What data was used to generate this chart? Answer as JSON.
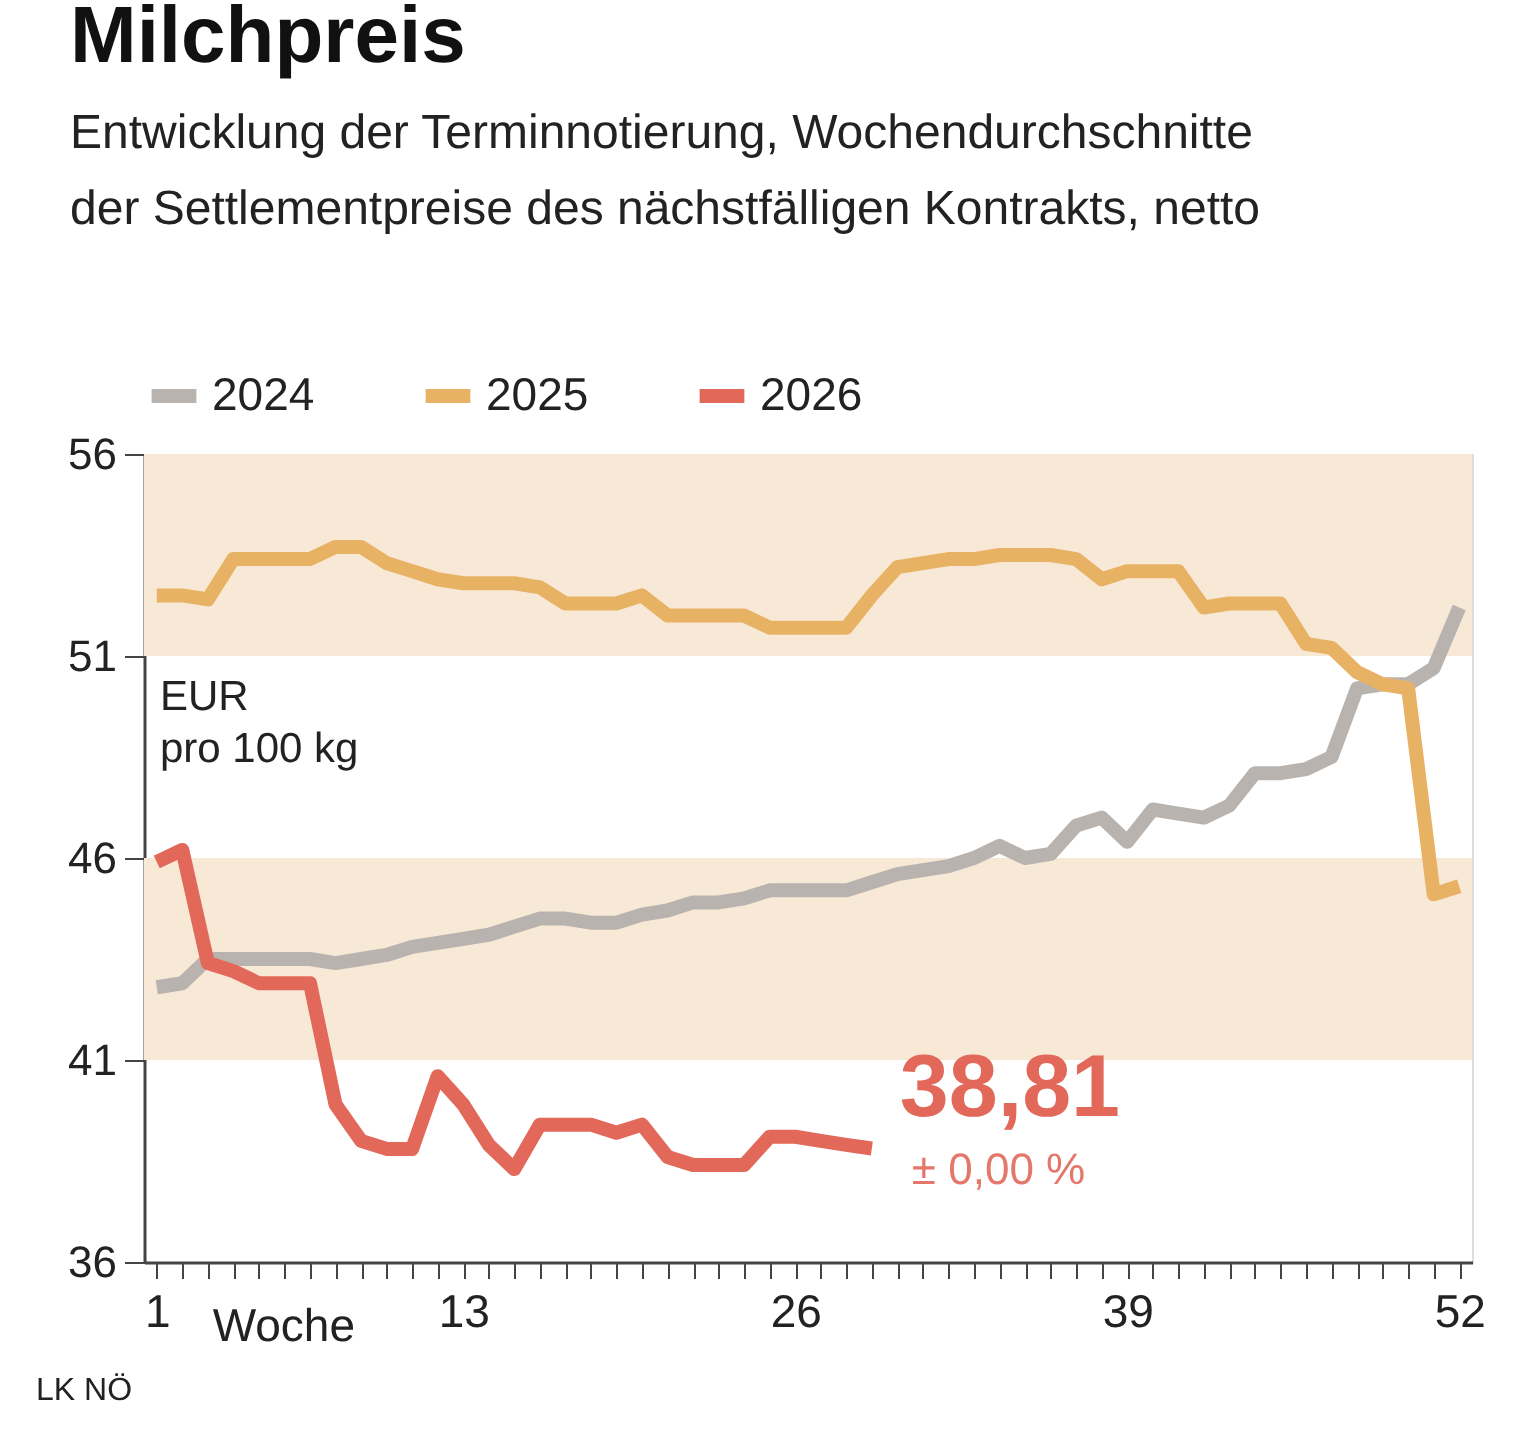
{
  "chart_data": {
    "type": "line",
    "title": "Milchpreis",
    "subtitle": [
      "Entwicklung der Terminnotierung, Wochendurchschnitte",
      "der Settlementpreise des nächstfälligen Kontrakts, netto"
    ],
    "xlabel": "Woche",
    "ylabel": "EUR pro 100 kg",
    "series": [
      {
        "name": "2024",
        "color": "#b8b3ae",
        "x": [
          1,
          2,
          3,
          4,
          5,
          6,
          7,
          8,
          9,
          10,
          11,
          12,
          13,
          14,
          15,
          16,
          17,
          18,
          19,
          20,
          21,
          22,
          23,
          24,
          25,
          26,
          27,
          28,
          29,
          30,
          31,
          32,
          33,
          34,
          35,
          36,
          37,
          38,
          39,
          40,
          41,
          42,
          43,
          44,
          45,
          46,
          47,
          48,
          49,
          50,
          51,
          52
        ],
        "values": [
          42.8,
          42.9,
          43.5,
          43.5,
          43.5,
          43.5,
          43.5,
          43.4,
          43.5,
          43.6,
          43.8,
          43.9,
          44.0,
          44.1,
          44.3,
          44.5,
          44.5,
          44.4,
          44.4,
          44.6,
          44.7,
          44.9,
          44.9,
          45.0,
          45.2,
          45.2,
          45.2,
          45.2,
          45.4,
          45.6,
          45.7,
          45.8,
          46.0,
          46.3,
          46.0,
          46.1,
          46.8,
          47.0,
          46.4,
          47.2,
          47.1,
          47.0,
          47.3,
          48.1,
          48.1,
          48.2,
          48.5,
          50.2,
          50.3,
          50.3,
          50.7,
          52.2
        ]
      },
      {
        "name": "2025",
        "color": "#e8b265",
        "x": [
          1,
          2,
          3,
          4,
          5,
          6,
          7,
          8,
          9,
          10,
          11,
          12,
          13,
          14,
          15,
          16,
          17,
          18,
          19,
          20,
          21,
          22,
          23,
          24,
          25,
          26,
          27,
          28,
          29,
          30,
          31,
          32,
          33,
          34,
          35,
          36,
          37,
          38,
          39,
          40,
          41,
          42,
          43,
          44,
          45,
          46,
          47,
          48,
          49,
          50,
          51,
          52
        ],
        "values": [
          52.5,
          52.5,
          52.4,
          53.4,
          53.4,
          53.4,
          53.4,
          53.7,
          53.7,
          53.3,
          53.1,
          52.9,
          52.8,
          52.8,
          52.8,
          52.7,
          52.3,
          52.3,
          52.3,
          52.5,
          52.0,
          52.0,
          52.0,
          52.0,
          51.7,
          51.7,
          51.7,
          51.7,
          52.5,
          53.2,
          53.3,
          53.4,
          53.4,
          53.5,
          53.5,
          53.5,
          53.4,
          52.9,
          53.1,
          53.1,
          53.1,
          52.2,
          52.3,
          52.3,
          52.3,
          51.3,
          51.2,
          50.6,
          50.3,
          50.2,
          45.1,
          45.3
        ]
      },
      {
        "name": "2026",
        "color": "#e2685a",
        "x": [
          1,
          2,
          3,
          4,
          5,
          6,
          7,
          8,
          9,
          10,
          11,
          12,
          13,
          14,
          15,
          16,
          17,
          18,
          19,
          20,
          21,
          22,
          23,
          24,
          25,
          26,
          27,
          28,
          29
        ],
        "values": [
          45.9,
          46.2,
          43.4,
          43.2,
          42.9,
          42.9,
          42.9,
          39.9,
          39.0,
          38.8,
          38.8,
          40.6,
          39.9,
          38.9,
          38.3,
          39.4,
          39.4,
          39.4,
          39.2,
          39.4,
          38.6,
          38.4,
          38.4,
          38.4,
          39.1,
          39.1,
          39.0,
          38.9,
          38.81
        ]
      }
    ],
    "xlim": [
      0.5,
      52.5
    ],
    "xticks": [
      1,
      {
        "value": 2,
        "label": null
      },
      {
        "value": 3,
        "label": null
      },
      {
        "value": 4,
        "label": null
      },
      {
        "value": 5,
        "label": null
      },
      {
        "value": 6,
        "label": null
      },
      {
        "value": 7,
        "label": null
      },
      {
        "value": 8,
        "label": null
      },
      {
        "value": 9,
        "label": null
      },
      {
        "value": 10,
        "label": null
      },
      {
        "value": 11,
        "label": null
      },
      {
        "value": 12,
        "label": null
      },
      13,
      {
        "value": 14,
        "label": null
      },
      {
        "value": 15,
        "label": null
      },
      {
        "value": 16,
        "label": null
      },
      {
        "value": 17,
        "label": null
      },
      {
        "value": 18,
        "label": null
      },
      {
        "value": 19,
        "label": null
      },
      {
        "value": 20,
        "label": null
      },
      {
        "value": 21,
        "label": null
      },
      {
        "value": 22,
        "label": null
      },
      {
        "value": 23,
        "label": null
      },
      {
        "value": 24,
        "label": null
      },
      {
        "value": 25,
        "label": null
      },
      26,
      {
        "value": 27,
        "label": null
      },
      {
        "value": 28,
        "label": null
      },
      {
        "value": 29,
        "label": null
      },
      {
        "value": 30,
        "label": null
      },
      {
        "value": 31,
        "label": null
      },
      {
        "value": 32,
        "label": null
      },
      {
        "value": 33,
        "label": null
      },
      {
        "value": 34,
        "label": null
      },
      {
        "value": 35,
        "label": null
      },
      {
        "value": 36,
        "label": null
      },
      {
        "value": 37,
        "label": null
      },
      {
        "value": 38,
        "label": null
      },
      39,
      {
        "value": 40,
        "label": null
      },
      {
        "value": 41,
        "label": null
      },
      {
        "value": 42,
        "label": null
      },
      {
        "value": 43,
        "label": null
      },
      {
        "value": 44,
        "label": null
      },
      {
        "value": 45,
        "label": null
      },
      {
        "value": 46,
        "label": null
      },
      {
        "value": 47,
        "label": null
      },
      {
        "value": 48,
        "label": null
      },
      {
        "value": 49,
        "label": null
      },
      {
        "value": 50,
        "label": null
      },
      {
        "value": 51,
        "label": null
      },
      52
    ],
    "ylim": [
      36,
      56
    ],
    "yticks": [
      36,
      41,
      46,
      51,
      56
    ],
    "bands": [
      {
        "axis": "y",
        "from": 41,
        "to": 46,
        "color": "#f8e8d6"
      },
      {
        "axis": "y",
        "from": 51,
        "to": 56,
        "color": "#f8e8d6"
      }
    ],
    "annotations": [
      {
        "text": "38,81",
        "x": 29,
        "y": 38.81
      },
      {
        "text": "± 0,00 %",
        "x": 29,
        "y": 38.81
      },
      "LK NÖ"
    ],
    "grid": false,
    "legend": "top left",
    "line_style": "solid",
    "marker": "none"
  }
}
